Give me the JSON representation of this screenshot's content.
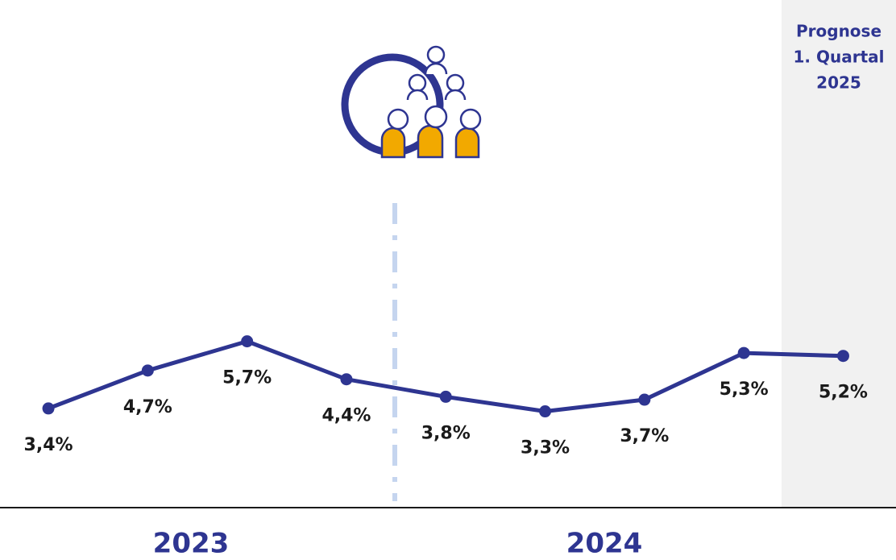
{
  "chart_data": {
    "type": "line",
    "categories": [
      null,
      null,
      null,
      null,
      null,
      null,
      null,
      null,
      null
    ],
    "series": [
      {
        "name": null,
        "color": "#2e3591",
        "values": [
          3.4,
          4.7,
          5.7,
          4.4,
          3.8,
          3.3,
          3.7,
          5.3,
          5.2
        ],
        "value_labels": [
          "3,4%",
          "4,7%",
          "5,7%",
          "4,4%",
          "3,8%",
          "3,3%",
          "3,7%",
          "5,3%",
          "5,2%"
        ]
      }
    ],
    "group_labels": [
      "2023",
      "2024"
    ],
    "annotation_lines": [
      "Prognose",
      "1. Quartal",
      "2025"
    ],
    "ylim": [
      0,
      17.4
    ]
  }
}
